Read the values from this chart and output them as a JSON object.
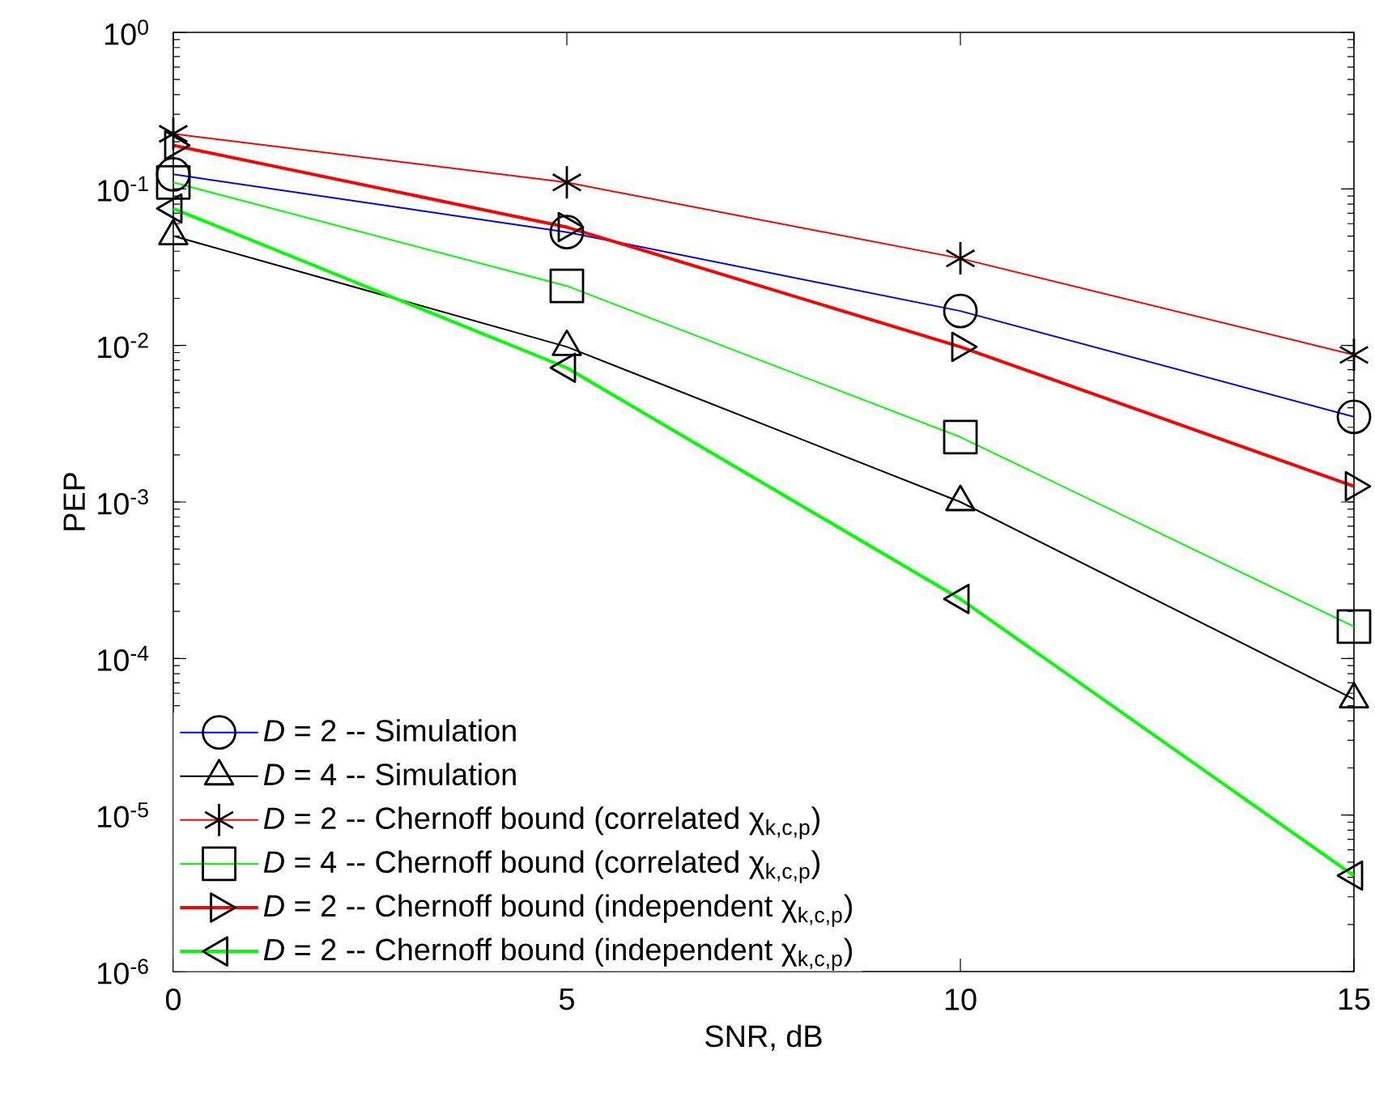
{
  "chart_data": {
    "type": "line",
    "xlabel": "SNR, dB",
    "ylabel": "PEP",
    "x": [
      0,
      5,
      10,
      15
    ],
    "xlim": [
      0,
      15
    ],
    "xticks": [
      0,
      5,
      10,
      15
    ],
    "ylim": [
      1e-06,
      1
    ],
    "log": "y",
    "yticks": [
      {
        "value": 1e-06,
        "label": "10$^{-6}$"
      },
      {
        "value": 1e-05,
        "label": "10$^{-5}$"
      },
      {
        "value": 0.0001,
        "label": "10$^{-4}$"
      },
      {
        "value": 0.001,
        "label": "10$^{-3}$"
      },
      {
        "value": 0.01,
        "label": "10$^{-2}$"
      },
      {
        "value": 0.1,
        "label": "10$^{-1}$"
      },
      {
        "value": 1,
        "label": "10$^{0}$"
      }
    ],
    "legend": "bottom left",
    "grid": false,
    "line_style": "solid",
    "series": [
      {
        "name": "*D* = 2 -- Simulation",
        "color": "#0000ff",
        "marker": "circle",
        "values": [
          0.124,
          0.053,
          0.0166,
          0.0035
        ]
      },
      {
        "name": "*D* = 4 -- Simulation",
        "color": "#000000",
        "marker": "triangle",
        "values": [
          0.05,
          0.0098,
          0.001,
          5.5e-05
        ]
      },
      {
        "name": "*D* = 2 -- Chernoff bound (correlated χ$_{k,c,p}$)",
        "color": "#ff0000",
        "marker": "cross",
        "values": [
          0.225,
          0.11,
          0.036,
          0.0087
        ]
      },
      {
        "name": "*D* = 4 -- Chernoff bound (correlated χ$_{k,c,p}$)",
        "color": "#00ff00",
        "marker": "square",
        "values": [
          0.11,
          0.024,
          0.0026,
          0.00016
        ]
      },
      {
        "name": "*D* = 2 -- Chernoff bound (independent χ$_{k,c,p}$)",
        "color": "#ff0000",
        "marker": "triangle-right",
        "values": [
          0.19,
          0.057,
          0.0098,
          0.00126
        ]
      },
      {
        "name": "*D* = 2 -- Chernoff bound (independent χ$_{k,c,p}$)",
        "color": "#00ff00",
        "marker": "triangle-left",
        "values": [
          0.075,
          0.0072,
          0.00024,
          4.1e-06
        ]
      }
    ]
  }
}
